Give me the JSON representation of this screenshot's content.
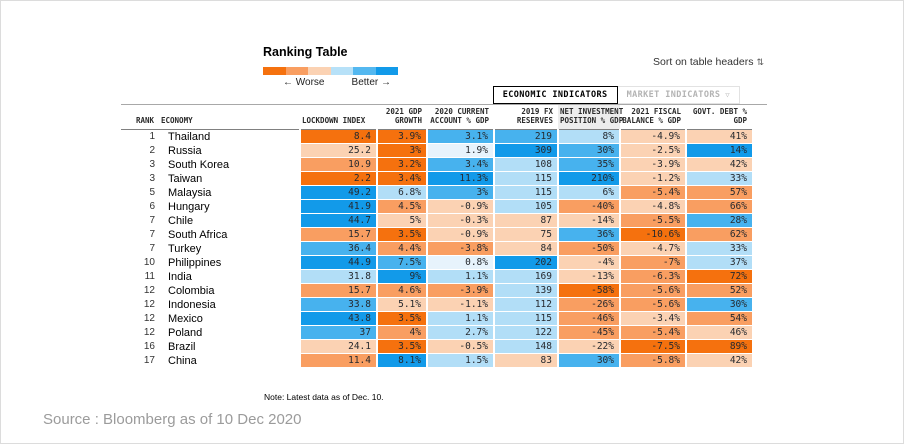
{
  "title": "Ranking Table",
  "sort_hint": "Sort on table headers",
  "sort_icon": "⇅",
  "tabs": [
    {
      "label": "ECONOMIC INDICATORS",
      "active": true
    },
    {
      "label": "MARKET INDICATORS",
      "active": false,
      "icon": "▽"
    }
  ],
  "note": "Note: Latest data as of Dec. 10.",
  "source": "Source : Bloomberg as of 10 Dec 2020",
  "chart_data": {
    "type": "heatmap",
    "title": "Ranking Table",
    "legend": {
      "worse_label": "← Worse",
      "better_label": "Better →",
      "colors": [
        "#f5710e",
        "#f99e61",
        "#fbd2b3",
        "#b7e1f8",
        "#54b8f0",
        "#129ae9"
      ]
    },
    "palette": {
      "o3": "#f5710e",
      "o2": "#f99e61",
      "o1": "#fbd2b3",
      "n": "#e7f3fc",
      "b1": "#b2def7",
      "b2": "#47b2ee",
      "b3": "#129ae9"
    },
    "columns": [
      {
        "id": "rank",
        "lines": [
          "RANK"
        ],
        "align": "right"
      },
      {
        "id": "economy",
        "lines": [
          "ECONOMY"
        ],
        "align": "left"
      },
      {
        "id": "lockdown",
        "lines": [
          "LOCKDOWN INDEX"
        ],
        "align": "left"
      },
      {
        "id": "gdp-growth",
        "lines": [
          "2021 GDP",
          "GROWTH"
        ],
        "align": "right"
      },
      {
        "id": "current-account",
        "lines": [
          "2020 CURRENT",
          "ACCOUNT % GDP"
        ],
        "align": "right"
      },
      {
        "id": "fx-reserves",
        "lines": [
          "2019 FX",
          "RESERVES"
        ],
        "align": "right"
      },
      {
        "id": "net-investment",
        "lines": [
          "NET INVESTMENT",
          "POSITION % GDP"
        ],
        "align": "right",
        "highlight": true
      },
      {
        "id": "fiscal-balance",
        "lines": [
          "2021 FISCAL",
          "BALANCE % GDP"
        ],
        "align": "right"
      },
      {
        "id": "govt-debt",
        "lines": [
          "GOVT. DEBT %",
          "GDP"
        ],
        "align": "right"
      }
    ],
    "rows": [
      {
        "rank": "1",
        "economy": "Thailand",
        "cells": [
          [
            "8.4",
            "o3"
          ],
          [
            "3.9%",
            "o3"
          ],
          [
            "3.1%",
            "b2"
          ],
          [
            "219",
            "b2"
          ],
          [
            "8%",
            "b1"
          ],
          [
            "-4.9%",
            "o1"
          ],
          [
            "41%",
            "o1"
          ]
        ]
      },
      {
        "rank": "2",
        "economy": "Russia",
        "cells": [
          [
            "25.2",
            "o1"
          ],
          [
            "3%",
            "o3"
          ],
          [
            "1.9%",
            "n"
          ],
          [
            "309",
            "b3"
          ],
          [
            "30%",
            "b2"
          ],
          [
            "-2.5%",
            "o1"
          ],
          [
            "14%",
            "b3"
          ]
        ]
      },
      {
        "rank": "3",
        "economy": "South Korea",
        "cells": [
          [
            "10.9",
            "o2"
          ],
          [
            "3.2%",
            "o3"
          ],
          [
            "3.4%",
            "b2"
          ],
          [
            "108",
            "b1"
          ],
          [
            "35%",
            "b2"
          ],
          [
            "-3.9%",
            "o1"
          ],
          [
            "42%",
            "o1"
          ]
        ]
      },
      {
        "rank": "3",
        "economy": "Taiwan",
        "cells": [
          [
            "2.2",
            "o3"
          ],
          [
            "3.4%",
            "o3"
          ],
          [
            "11.3%",
            "b3"
          ],
          [
            "115",
            "b1"
          ],
          [
            "210%",
            "b3"
          ],
          [
            "-1.2%",
            "o1"
          ],
          [
            "33%",
            "b1"
          ]
        ]
      },
      {
        "rank": "5",
        "economy": "Malaysia",
        "cells": [
          [
            "49.2",
            "b3"
          ],
          [
            "6.8%",
            "b1"
          ],
          [
            "3%",
            "b2"
          ],
          [
            "115",
            "b1"
          ],
          [
            "6%",
            "b1"
          ],
          [
            "-5.4%",
            "o2"
          ],
          [
            "57%",
            "o2"
          ]
        ]
      },
      {
        "rank": "6",
        "economy": "Hungary",
        "cells": [
          [
            "41.9",
            "b3"
          ],
          [
            "4.5%",
            "o2"
          ],
          [
            "-0.9%",
            "o1"
          ],
          [
            "105",
            "b1"
          ],
          [
            "-40%",
            "o2"
          ],
          [
            "-4.8%",
            "o1"
          ],
          [
            "66%",
            "o2"
          ]
        ]
      },
      {
        "rank": "7",
        "economy": "Chile",
        "cells": [
          [
            "44.7",
            "b3"
          ],
          [
            "5%",
            "o1"
          ],
          [
            "-0.3%",
            "o1"
          ],
          [
            "87",
            "o1"
          ],
          [
            "-14%",
            "o1"
          ],
          [
            "-5.5%",
            "o2"
          ],
          [
            "28%",
            "b2"
          ]
        ]
      },
      {
        "rank": "7",
        "economy": "South Africa",
        "cells": [
          [
            "15.7",
            "o2"
          ],
          [
            "3.5%",
            "o3"
          ],
          [
            "-0.9%",
            "o1"
          ],
          [
            "75",
            "o1"
          ],
          [
            "36%",
            "b2"
          ],
          [
            "-10.6%",
            "o3"
          ],
          [
            "62%",
            "o2"
          ]
        ]
      },
      {
        "rank": "7",
        "economy": "Turkey",
        "cells": [
          [
            "36.4",
            "b2"
          ],
          [
            "4.4%",
            "o2"
          ],
          [
            "-3.8%",
            "o2"
          ],
          [
            "84",
            "o1"
          ],
          [
            "-50%",
            "o2"
          ],
          [
            "-4.7%",
            "o1"
          ],
          [
            "33%",
            "b1"
          ]
        ]
      },
      {
        "rank": "10",
        "economy": "Philippines",
        "cells": [
          [
            "44.9",
            "b3"
          ],
          [
            "7.5%",
            "b2"
          ],
          [
            "0.8%",
            "n"
          ],
          [
            "202",
            "b3"
          ],
          [
            "-4%",
            "o1"
          ],
          [
            "-7%",
            "o2"
          ],
          [
            "37%",
            "b1"
          ]
        ]
      },
      {
        "rank": "11",
        "economy": "India",
        "cells": [
          [
            "31.8",
            "b1"
          ],
          [
            "9%",
            "b3"
          ],
          [
            "1.1%",
            "b1"
          ],
          [
            "169",
            "b1"
          ],
          [
            "-13%",
            "o1"
          ],
          [
            "-6.3%",
            "o2"
          ],
          [
            "72%",
            "o3"
          ]
        ]
      },
      {
        "rank": "12",
        "economy": "Colombia",
        "cells": [
          [
            "15.7",
            "o2"
          ],
          [
            "4.6%",
            "o2"
          ],
          [
            "-3.9%",
            "o2"
          ],
          [
            "139",
            "b1"
          ],
          [
            "-58%",
            "o3"
          ],
          [
            "-5.6%",
            "o2"
          ],
          [
            "52%",
            "o2"
          ]
        ]
      },
      {
        "rank": "12",
        "economy": "Indonesia",
        "cells": [
          [
            "33.8",
            "b2"
          ],
          [
            "5.1%",
            "o1"
          ],
          [
            "-1.1%",
            "o1"
          ],
          [
            "112",
            "b1"
          ],
          [
            "-26%",
            "o2"
          ],
          [
            "-5.6%",
            "o2"
          ],
          [
            "30%",
            "b2"
          ]
        ]
      },
      {
        "rank": "12",
        "economy": "Mexico",
        "cells": [
          [
            "43.8",
            "b3"
          ],
          [
            "3.5%",
            "o3"
          ],
          [
            "1.1%",
            "b1"
          ],
          [
            "115",
            "b1"
          ],
          [
            "-46%",
            "o2"
          ],
          [
            "-3.4%",
            "o1"
          ],
          [
            "54%",
            "o2"
          ]
        ]
      },
      {
        "rank": "12",
        "economy": "Poland",
        "cells": [
          [
            "37",
            "b2"
          ],
          [
            "4%",
            "o2"
          ],
          [
            "2.7%",
            "b1"
          ],
          [
            "122",
            "b1"
          ],
          [
            "-45%",
            "o2"
          ],
          [
            "-5.4%",
            "o2"
          ],
          [
            "46%",
            "o1"
          ]
        ]
      },
      {
        "rank": "16",
        "economy": "Brazil",
        "cells": [
          [
            "24.1",
            "o1"
          ],
          [
            "3.5%",
            "o3"
          ],
          [
            "-0.5%",
            "o1"
          ],
          [
            "148",
            "b1"
          ],
          [
            "-22%",
            "o1"
          ],
          [
            "-7.5%",
            "o3"
          ],
          [
            "89%",
            "o3"
          ]
        ]
      },
      {
        "rank": "17",
        "economy": "China",
        "cells": [
          [
            "11.4",
            "o2"
          ],
          [
            "8.1%",
            "b3"
          ],
          [
            "1.5%",
            "b1"
          ],
          [
            "83",
            "o1"
          ],
          [
            "30%",
            "b2"
          ],
          [
            "-5.8%",
            "o2"
          ],
          [
            "42%",
            "o1"
          ]
        ]
      }
    ]
  }
}
